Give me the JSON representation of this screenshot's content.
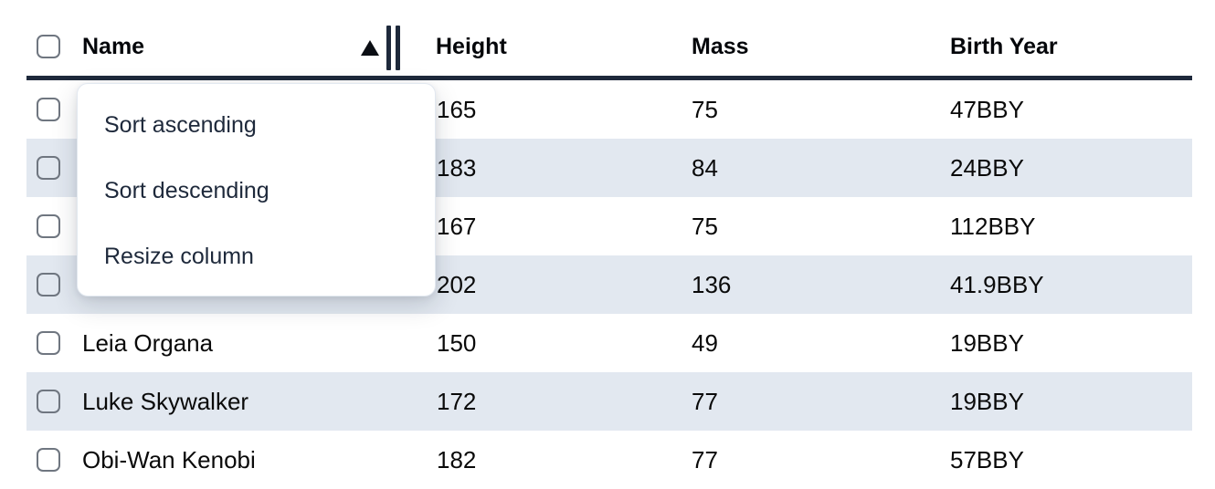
{
  "table": {
    "columns": [
      {
        "id": "name",
        "label": "Name"
      },
      {
        "id": "height",
        "label": "Height"
      },
      {
        "id": "mass",
        "label": "Mass"
      },
      {
        "id": "birth_year",
        "label": "Birth Year"
      }
    ],
    "sort": {
      "column": "Name",
      "direction": "ascending"
    },
    "rows": [
      {
        "name": "",
        "height": "165",
        "mass": "75",
        "birth_year": "47BBY"
      },
      {
        "name": "",
        "height": "183",
        "mass": "84",
        "birth_year": "24BBY"
      },
      {
        "name": "",
        "height": "167",
        "mass": "75",
        "birth_year": "112BBY"
      },
      {
        "name": "",
        "height": "202",
        "mass": "136",
        "birth_year": "41.9BBY"
      },
      {
        "name": "Leia Organa",
        "height": "150",
        "mass": "49",
        "birth_year": "19BBY"
      },
      {
        "name": "Luke Skywalker",
        "height": "172",
        "mass": "77",
        "birth_year": "19BBY"
      },
      {
        "name": "Obi-Wan Kenobi",
        "height": "182",
        "mass": "77",
        "birth_year": "57BBY"
      }
    ]
  },
  "context_menu": {
    "items": [
      {
        "label": "Sort ascending"
      },
      {
        "label": "Sort descending"
      },
      {
        "label": "Resize column"
      }
    ]
  },
  "colors": {
    "stripe": "#e2e8f0",
    "header_border": "#1e293b",
    "menu_text": "#1e293b",
    "checkbox_border": "#6f7680",
    "cell_text": "#0a0a0a",
    "menu_border": "#e2e8f0"
  }
}
